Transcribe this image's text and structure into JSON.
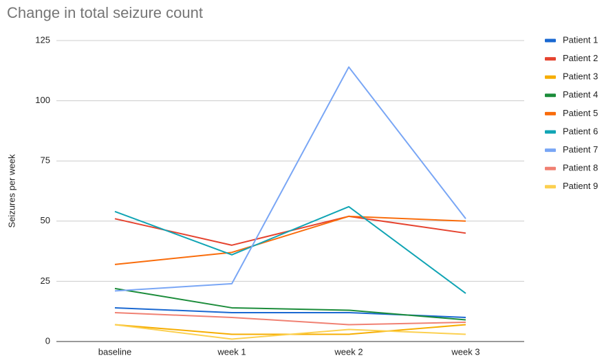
{
  "chart_data": {
    "type": "line",
    "title": "Change in total seizure count",
    "y_label": "Seizures per week",
    "categories": [
      "baseline",
      "week 1",
      "week 2",
      "week 3"
    ],
    "ylim": [
      0,
      125
    ],
    "yticks": [
      0,
      25,
      50,
      75,
      100,
      125
    ],
    "grid": true,
    "legend": "right",
    "series": [
      {
        "name": "Patient 1",
        "color": "#1a68d1",
        "values": [
          14,
          12,
          12,
          10
        ]
      },
      {
        "name": "Patient 2",
        "color": "#e5432f",
        "values": [
          51,
          40,
          52,
          45
        ]
      },
      {
        "name": "Patient 3",
        "color": "#f6ad00",
        "values": [
          7,
          3,
          3,
          7
        ]
      },
      {
        "name": "Patient 4",
        "color": "#1b8c3a",
        "values": [
          22,
          14,
          13,
          9
        ]
      },
      {
        "name": "Patient 5",
        "color": "#f96c0b",
        "values": [
          32,
          37,
          52,
          50
        ]
      },
      {
        "name": "Patient 6",
        "color": "#10a4b4",
        "values": [
          54,
          36,
          56,
          20
        ]
      },
      {
        "name": "Patient 7",
        "color": "#79a6f5",
        "values": [
          21,
          24,
          114,
          51
        ]
      },
      {
        "name": "Patient 8",
        "color": "#f08072",
        "values": [
          12,
          10,
          7,
          8
        ]
      },
      {
        "name": "Patient 9",
        "color": "#fcd04f",
        "values": [
          7,
          1,
          5,
          3
        ]
      }
    ]
  }
}
